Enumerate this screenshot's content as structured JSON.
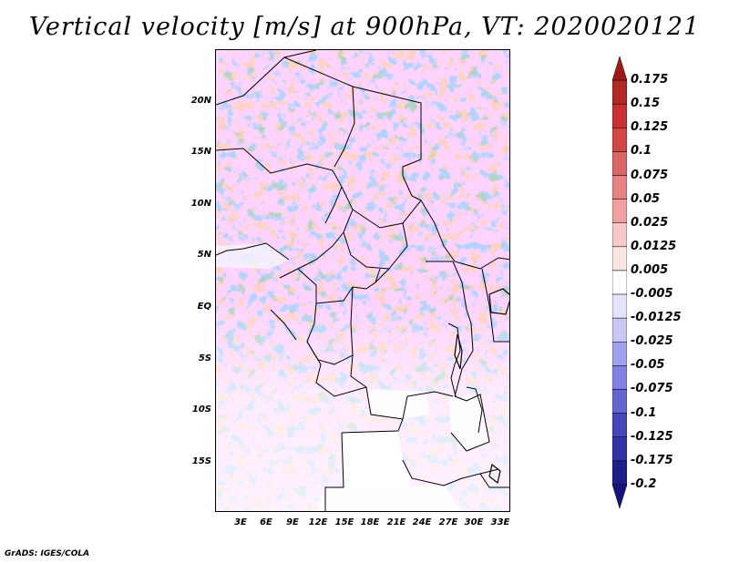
{
  "title": "Vertical velocity [m/s] at 900hPa, VT: 2020020121",
  "credit": "GrADS: IGES/COLA",
  "map": {
    "lat_labels": [
      "20N",
      "15N",
      "10N",
      "5N",
      "EQ",
      "5S",
      "10S",
      "15S"
    ],
    "lon_labels": [
      "3E",
      "6E",
      "9E",
      "12E",
      "15E",
      "18E",
      "21E",
      "24E",
      "27E",
      "30E",
      "33E"
    ],
    "lat_range": [
      -20,
      25
    ],
    "lon_range": [
      0,
      34
    ]
  },
  "colorbar": {
    "levels": [
      "0.175",
      "0.15",
      "0.125",
      "0.1",
      "0.075",
      "0.05",
      "0.025",
      "0.0125",
      "0.005",
      "-0.005",
      "-0.0125",
      "-0.025",
      "-0.05",
      "-0.075",
      "-0.1",
      "-0.125",
      "-0.175",
      "-0.2"
    ],
    "colors": [
      "#a01919",
      "#b42828",
      "#c83232",
      "#d24646",
      "#dc6464",
      "#e68282",
      "#f0a0a0",
      "#f6c8c8",
      "#fbe3e3",
      "#ffffff",
      "#e3e3fb",
      "#c8c8f3",
      "#a0a0ee",
      "#8282e6",
      "#6464d2",
      "#4646be",
      "#3232aa",
      "#1e1e8c",
      "#14147a"
    ]
  }
}
